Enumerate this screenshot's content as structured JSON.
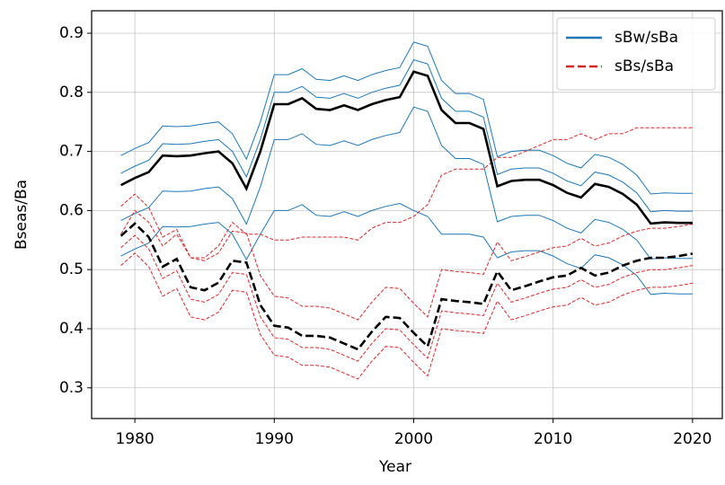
{
  "chart_data": {
    "type": "line",
    "x_label": "Year",
    "y_label": "Bseas/Ba",
    "x": [
      1979,
      1980,
      1981,
      1982,
      1983,
      1984,
      1985,
      1986,
      1987,
      1988,
      1989,
      1990,
      1991,
      1992,
      1993,
      1994,
      1995,
      1996,
      1997,
      1998,
      1999,
      2000,
      2001,
      2002,
      2003,
      2004,
      2005,
      2006,
      2007,
      2008,
      2009,
      2010,
      2011,
      2012,
      2013,
      2014,
      2015,
      2016,
      2017,
      2018,
      2019,
      2020
    ],
    "xlim": [
      1976.9,
      2022.2
    ],
    "xticks": [
      1980,
      1990,
      2000,
      2010,
      2020
    ],
    "ylim": [
      0.248,
      0.938
    ],
    "yticks": [
      0.3,
      0.4,
      0.5,
      0.6,
      0.7,
      0.8,
      0.9
    ],
    "grid": true,
    "legend": "upper right",
    "series": [
      {
        "name": "sBw/sBa",
        "color": "#1f77b4",
        "style": "solid",
        "values": [
          0.693,
          0.705,
          0.715,
          0.743,
          0.742,
          0.743,
          0.747,
          0.75,
          0.73,
          0.687,
          0.75,
          0.83,
          0.83,
          0.84,
          0.822,
          0.82,
          0.828,
          0.82,
          0.83,
          0.837,
          0.842,
          0.885,
          0.878,
          0.82,
          0.798,
          0.798,
          0.788,
          0.691,
          0.7,
          0.702,
          0.702,
          0.693,
          0.68,
          0.672,
          0.695,
          0.69,
          0.678,
          0.66,
          0.628,
          0.63,
          0.629,
          0.629
        ]
      },
      {
        "color": "#1f77b4",
        "style": "solid",
        "values": [
          0.583,
          0.595,
          0.605,
          0.633,
          0.632,
          0.633,
          0.637,
          0.64,
          0.62,
          0.577,
          0.64,
          0.72,
          0.72,
          0.73,
          0.712,
          0.71,
          0.718,
          0.71,
          0.72,
          0.727,
          0.732,
          0.775,
          0.768,
          0.71,
          0.688,
          0.688,
          0.678,
          0.581,
          0.59,
          0.592,
          0.592,
          0.583,
          0.57,
          0.562,
          0.585,
          0.58,
          0.568,
          0.55,
          0.518,
          0.52,
          0.519,
          0.519
        ]
      },
      {
        "color": "#1f77b4",
        "style": "solid",
        "values": [
          0.523,
          0.535,
          0.545,
          0.573,
          0.572,
          0.573,
          0.577,
          0.58,
          0.56,
          0.517,
          0.56,
          0.6,
          0.6,
          0.61,
          0.592,
          0.59,
          0.598,
          0.59,
          0.6,
          0.607,
          0.612,
          0.6,
          0.59,
          0.56,
          0.56,
          0.56,
          0.555,
          0.52,
          0.53,
          0.532,
          0.532,
          0.523,
          0.51,
          0.502,
          0.525,
          0.52,
          0.508,
          0.49,
          0.458,
          0.46,
          0.459,
          0.459
        ]
      },
      {
        "color": "#1f77b4",
        "style": "solid",
        "values": [
          0.663,
          0.675,
          0.685,
          0.713,
          0.712,
          0.713,
          0.717,
          0.72,
          0.7,
          0.657,
          0.72,
          0.8,
          0.8,
          0.81,
          0.792,
          0.79,
          0.798,
          0.79,
          0.8,
          0.807,
          0.812,
          0.855,
          0.848,
          0.79,
          0.768,
          0.768,
          0.758,
          0.661,
          0.67,
          0.672,
          0.672,
          0.663,
          0.65,
          0.642,
          0.665,
          0.66,
          0.648,
          0.63,
          0.598,
          0.6,
          0.599,
          0.599
        ]
      },
      {
        "name": "sBs/sBa",
        "color": "#d62728",
        "style": "dashed",
        "values": [
          0.607,
          0.628,
          0.605,
          0.555,
          0.568,
          0.52,
          0.515,
          0.528,
          0.565,
          0.562,
          0.49,
          0.455,
          0.452,
          0.438,
          0.438,
          0.435,
          0.425,
          0.415,
          0.445,
          0.47,
          0.468,
          0.443,
          0.42,
          0.5,
          0.497,
          0.495,
          0.492,
          0.547,
          0.515,
          0.522,
          0.53,
          0.537,
          0.54,
          0.553,
          0.54,
          0.545,
          0.557,
          0.565,
          0.57,
          0.57,
          0.573,
          0.577
        ]
      },
      {
        "color": "#d62728",
        "style": "dashed",
        "values": [
          0.507,
          0.528,
          0.505,
          0.455,
          0.468,
          0.42,
          0.415,
          0.428,
          0.465,
          0.462,
          0.39,
          0.355,
          0.352,
          0.338,
          0.338,
          0.335,
          0.325,
          0.315,
          0.345,
          0.37,
          0.368,
          0.343,
          0.32,
          0.4,
          0.397,
          0.395,
          0.392,
          0.447,
          0.415,
          0.422,
          0.43,
          0.437,
          0.44,
          0.453,
          0.44,
          0.445,
          0.457,
          0.465,
          0.47,
          0.47,
          0.473,
          0.477
        ]
      },
      {
        "color": "#d62728",
        "style": "dashed",
        "values": [
          0.56,
          0.6,
          0.58,
          0.54,
          0.56,
          0.52,
          0.52,
          0.54,
          0.58,
          0.56,
          0.56,
          0.55,
          0.55,
          0.555,
          0.555,
          0.555,
          0.555,
          0.55,
          0.57,
          0.58,
          0.58,
          0.59,
          0.61,
          0.66,
          0.67,
          0.67,
          0.67,
          0.69,
          0.69,
          0.7,
          0.71,
          0.72,
          0.72,
          0.73,
          0.72,
          0.73,
          0.73,
          0.74,
          0.74,
          0.74,
          0.74,
          0.74
        ]
      },
      {
        "color": "#d62728",
        "style": "dashed",
        "values": [
          0.537,
          0.558,
          0.535,
          0.485,
          0.498,
          0.45,
          0.445,
          0.458,
          0.495,
          0.492,
          0.42,
          0.385,
          0.382,
          0.368,
          0.368,
          0.365,
          0.355,
          0.345,
          0.375,
          0.4,
          0.398,
          0.373,
          0.35,
          0.43,
          0.427,
          0.425,
          0.422,
          0.477,
          0.445,
          0.452,
          0.46,
          0.467,
          0.47,
          0.483,
          0.47,
          0.475,
          0.487,
          0.495,
          0.5,
          0.5,
          0.503,
          0.507
        ]
      },
      {
        "color": "#000000",
        "style": "solid",
        "values": [
          0.643,
          0.655,
          0.665,
          0.693,
          0.692,
          0.693,
          0.697,
          0.7,
          0.68,
          0.637,
          0.7,
          0.78,
          0.78,
          0.79,
          0.772,
          0.77,
          0.778,
          0.77,
          0.78,
          0.787,
          0.792,
          0.835,
          0.828,
          0.77,
          0.748,
          0.748,
          0.738,
          0.641,
          0.65,
          0.652,
          0.652,
          0.643,
          0.63,
          0.622,
          0.645,
          0.64,
          0.628,
          0.61,
          0.578,
          0.58,
          0.579,
          0.579
        ]
      },
      {
        "color": "#000000",
        "style": "dashed",
        "values": [
          0.557,
          0.578,
          0.555,
          0.505,
          0.518,
          0.47,
          0.465,
          0.478,
          0.515,
          0.512,
          0.44,
          0.405,
          0.402,
          0.388,
          0.388,
          0.385,
          0.375,
          0.365,
          0.395,
          0.42,
          0.418,
          0.393,
          0.37,
          0.45,
          0.447,
          0.445,
          0.442,
          0.497,
          0.465,
          0.472,
          0.48,
          0.487,
          0.49,
          0.503,
          0.49,
          0.495,
          0.507,
          0.515,
          0.52,
          0.52,
          0.523,
          0.527
        ]
      }
    ]
  }
}
